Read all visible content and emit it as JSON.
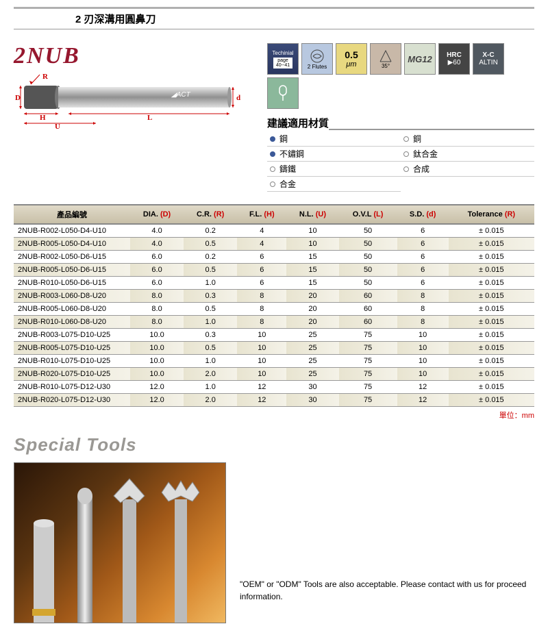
{
  "header_title": "2 刃深溝用圓鼻刀",
  "model": "2NUB",
  "dim_labels": [
    "R",
    "D",
    "H",
    "U",
    "L",
    "d"
  ],
  "badges": {
    "tech_top": "Techinial",
    "tech_page": "page",
    "tech_num": "40--41",
    "flute": "2 Flutes",
    "um_val": "0.5",
    "um_unit": "μm",
    "angle": "35°",
    "mg": "MG12",
    "hrc_top": "HRC",
    "hrc_val": "▶60",
    "xc_top": "X-C",
    "xc_bot": "ALTIN"
  },
  "materials_title": "建議適用材質",
  "materials": [
    {
      "on": true,
      "label": "鋼"
    },
    {
      "on": false,
      "label": "銅"
    },
    {
      "on": true,
      "label": "不鏽鋼"
    },
    {
      "on": false,
      "label": "鈦合金"
    },
    {
      "on": false,
      "label": "鑄鐵"
    },
    {
      "on": false,
      "label": "合成"
    },
    {
      "on": false,
      "label": "合金"
    }
  ],
  "table_headers": [
    {
      "main": "產品編號",
      "sub": ""
    },
    {
      "main": "DIA.",
      "sub": "(D)"
    },
    {
      "main": "C.R.",
      "sub": "(R)"
    },
    {
      "main": "F.L.",
      "sub": "(H)"
    },
    {
      "main": "N.L.",
      "sub": "(U)"
    },
    {
      "main": "O.V.L",
      "sub": "(L)"
    },
    {
      "main": "S.D.",
      "sub": "(d)"
    },
    {
      "main": "Tolerance",
      "sub": "(R)"
    }
  ],
  "rows": [
    [
      "2NUB-R002-L050-D4-U10",
      "4.0",
      "0.2",
      "4",
      "10",
      "50",
      "6",
      "± 0.015"
    ],
    [
      "2NUB-R005-L050-D4-U10",
      "4.0",
      "0.5",
      "4",
      "10",
      "50",
      "6",
      "± 0.015"
    ],
    [
      "2NUB-R002-L050-D6-U15",
      "6.0",
      "0.2",
      "6",
      "15",
      "50",
      "6",
      "± 0.015"
    ],
    [
      "2NUB-R005-L050-D6-U15",
      "6.0",
      "0.5",
      "6",
      "15",
      "50",
      "6",
      "± 0.015"
    ],
    [
      "2NUB-R010-L050-D6-U15",
      "6.0",
      "1.0",
      "6",
      "15",
      "50",
      "6",
      "± 0.015"
    ],
    [
      "2NUB-R003-L060-D8-U20",
      "8.0",
      "0.3",
      "8",
      "20",
      "60",
      "8",
      "± 0.015"
    ],
    [
      "2NUB-R005-L060-D8-U20",
      "8.0",
      "0.5",
      "8",
      "20",
      "60",
      "8",
      "± 0.015"
    ],
    [
      "2NUB-R010-L060-D8-U20",
      "8.0",
      "1.0",
      "8",
      "20",
      "60",
      "8",
      "± 0.015"
    ],
    [
      "2NUB-R003-L075-D10-U25",
      "10.0",
      "0.3",
      "10",
      "25",
      "75",
      "10",
      "± 0.015"
    ],
    [
      "2NUB-R005-L075-D10-U25",
      "10.0",
      "0.5",
      "10",
      "25",
      "75",
      "10",
      "± 0.015"
    ],
    [
      "2NUB-R010-L075-D10-U25",
      "10.0",
      "1.0",
      "10",
      "25",
      "75",
      "10",
      "± 0.015"
    ],
    [
      "2NUB-R020-L075-D10-U25",
      "10.0",
      "2.0",
      "10",
      "25",
      "75",
      "10",
      "± 0.015"
    ],
    [
      "2NUB-R010-L075-D12-U30",
      "12.0",
      "1.0",
      "12",
      "30",
      "75",
      "12",
      "± 0.015"
    ],
    [
      "2NUB-R020-L075-D12-U30",
      "12.0",
      "2.0",
      "12",
      "30",
      "75",
      "12",
      "± 0.015"
    ]
  ],
  "unit_note": "單位：mm",
  "special_title": "Special Tools",
  "special_text": "\"OEM\" or \"ODM\" Tools are also acceptable. Please contact with us for proceed information.",
  "colors": {
    "accent": "#96172e",
    "red": "#c00",
    "header_bg_top": "#e0dac8",
    "header_bg_bot": "#c8c0a8"
  }
}
